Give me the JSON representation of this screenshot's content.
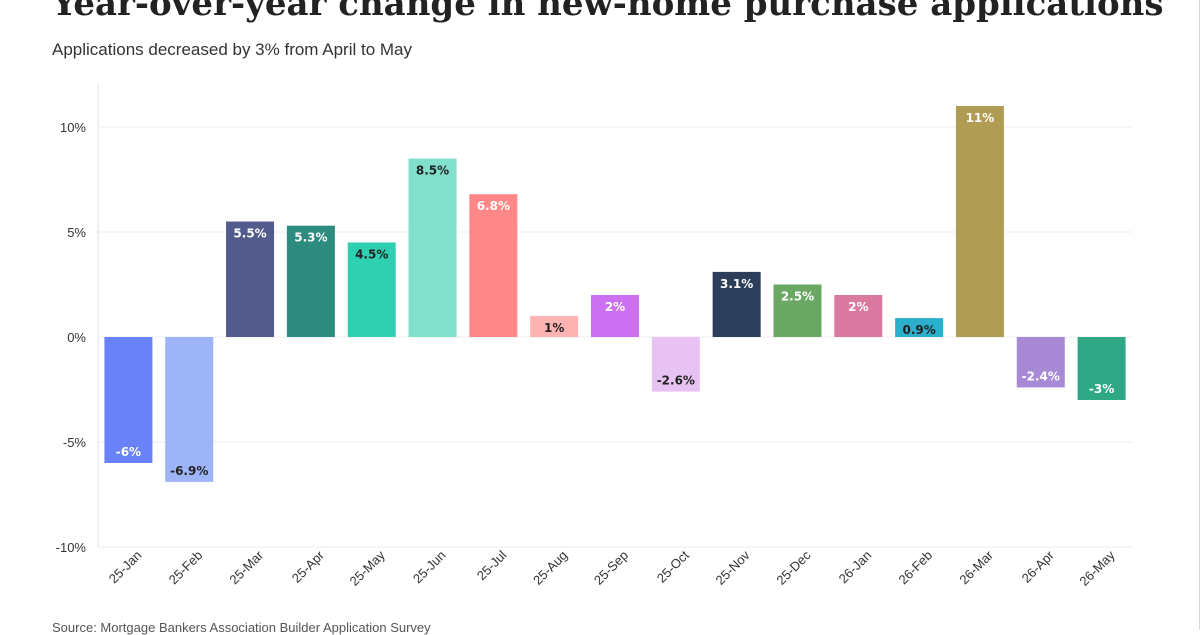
{
  "chart_data": {
    "type": "bar",
    "title": "Year-over-year change in new-home purchase applications",
    "subtitle": "Applications decreased by 3% from April to May",
    "source": "Source: Mortgage Bankers Association Builder Application Survey",
    "categories": [
      "25-Jan",
      "25-Feb",
      "25-Mar",
      "25-Apr",
      "25-May",
      "25-Jun",
      "25-Jul",
      "25-Aug",
      "25-Sep",
      "25-Oct",
      "25-Nov",
      "25-Dec",
      "26-Jan",
      "26-Feb",
      "26-Mar",
      "26-Apr",
      "26-May"
    ],
    "values": [
      -6,
      -6.9,
      5.5,
      5.3,
      4.5,
      8.5,
      6.8,
      1,
      2,
      -2.6,
      3.1,
      2.5,
      2,
      0.9,
      11,
      -2.4,
      -3
    ],
    "value_labels": [
      "-6%",
      "-6.9%",
      "5.5%",
      "5.3%",
      "4.5%",
      "8.5%",
      "6.8%",
      "1%",
      "2%",
      "-2.6%",
      "3.1%",
      "2.5%",
      "2%",
      "0.9%",
      "11%",
      "-2.4%",
      "-3%"
    ],
    "colors": [
      "#6a82f7",
      "#9eb4f9",
      "#535b8c",
      "#2e8b80",
      "#2fcfb1",
      "#80e0cc",
      "#ff8787",
      "#ffb3b3",
      "#cc6ff0",
      "#e9c2f4",
      "#2c3e5a",
      "#6aa864",
      "#db7aa0",
      "#2ab0cc",
      "#b09c52",
      "#a889d6",
      "#2ea885"
    ],
    "label_colors": [
      "#ffffff",
      "#222222",
      "#ffffff",
      "#ffffff",
      "#222222",
      "#222222",
      "#ffffff",
      "#222222",
      "#ffffff",
      "#222222",
      "#ffffff",
      "#ffffff",
      "#ffffff",
      "#222222",
      "#ffffff",
      "#ffffff",
      "#ffffff"
    ],
    "yticks": [
      10,
      5,
      0,
      -5,
      -10
    ],
    "ytick_labels": [
      "10%",
      "5%",
      "0%",
      "-5%",
      "-10%"
    ],
    "ylim": [
      -10,
      12
    ],
    "xlabel": "",
    "ylabel": "",
    "grid": true,
    "legend": "none"
  }
}
